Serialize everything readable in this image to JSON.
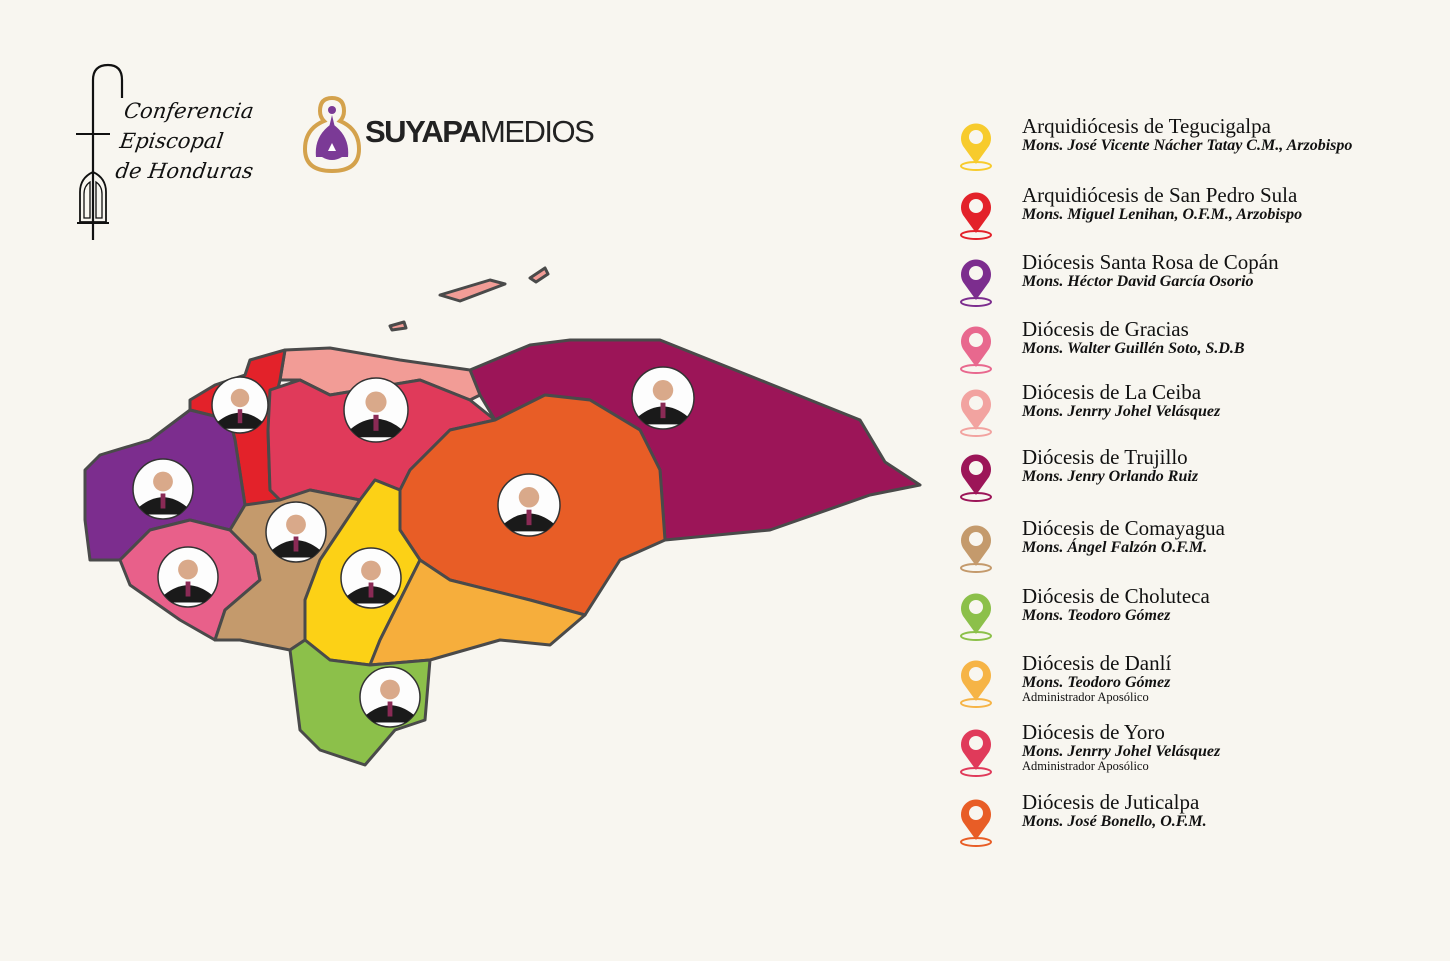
{
  "logos": {
    "conferencia": {
      "lines": [
        "Conferencia",
        "Episcopal",
        "de Honduras"
      ]
    },
    "suyapa": {
      "bold": "SUYAPA",
      "light": "MEDIOS",
      "purple": "#7b3a96",
      "gold": "#d4a24c"
    }
  },
  "map": {
    "outline_color": "#4a4a4a",
    "regions": [
      {
        "id": "tegucigalpa",
        "color": "#fcd116"
      },
      {
        "id": "san-pedro-sula",
        "color": "#e3222a"
      },
      {
        "id": "santa-rosa-de-copan",
        "color": "#7c2d8e"
      },
      {
        "id": "gracias",
        "color": "#e8608a"
      },
      {
        "id": "la-ceiba",
        "color": "#f29c96"
      },
      {
        "id": "trujillo",
        "color": "#9c1558"
      },
      {
        "id": "comayagua",
        "color": "#c49a6c"
      },
      {
        "id": "choluteca",
        "color": "#8cc04a"
      },
      {
        "id": "danli",
        "color": "#f6ae3c"
      },
      {
        "id": "yoro",
        "color": "#e03a5a"
      },
      {
        "id": "juticalpa",
        "color": "#e85d26"
      }
    ]
  },
  "legend": [
    {
      "title": "Arquidiócesis de Tegucigalpa",
      "bishop": "Mons. José Vicente Nácher Tatay C.M.,  Arzobispo",
      "color": "#f7cb2d"
    },
    {
      "title": "Arquidiócesis de San Pedro Sula",
      "bishop": "Mons. Miguel Lenihan, O.F.M., Arzobispo",
      "color": "#e3222a"
    },
    {
      "title": "Diócesis Santa Rosa de Copán",
      "bishop": "Mons. Héctor David García Osorio",
      "color": "#7c2d8e"
    },
    {
      "title": "Diócesis de Gracias",
      "bishop": "Mons. Walter Guillén Soto, S.D.B",
      "color": "#e8688e"
    },
    {
      "title": "Diócesis de La Ceiba",
      "bishop": "Mons. Jenrry Johel Velásquez",
      "color": "#f2a3a0"
    },
    {
      "title": "Diócesis de Trujillo",
      "bishop": "Mons. Jenry Orlando Ruiz",
      "color": "#9c1558"
    },
    {
      "title": "Diócesis de Comayagua",
      "bishop": "Mons. Ángel Falzón O.F.M.",
      "color": "#c49a6c"
    },
    {
      "title": "Diócesis de Choluteca",
      "bishop": "Mons. Teodoro Gómez",
      "color": "#8cc04a"
    },
    {
      "title": "Diócesis de Danlí",
      "bishop": "Mons. Teodoro Gómez",
      "note": "Administrador Aposólico",
      "color": "#f6b446"
    },
    {
      "title": "Diócesis de Yoro",
      "bishop": "Mons. Jenrry Johel Velásquez",
      "note": "Administrador Aposólico",
      "color": "#e03a5a"
    },
    {
      "title": "Diócesis de Juticalpa",
      "bishop": "Mons. José Bonello, O.F.M.",
      "color": "#e85d26"
    }
  ]
}
